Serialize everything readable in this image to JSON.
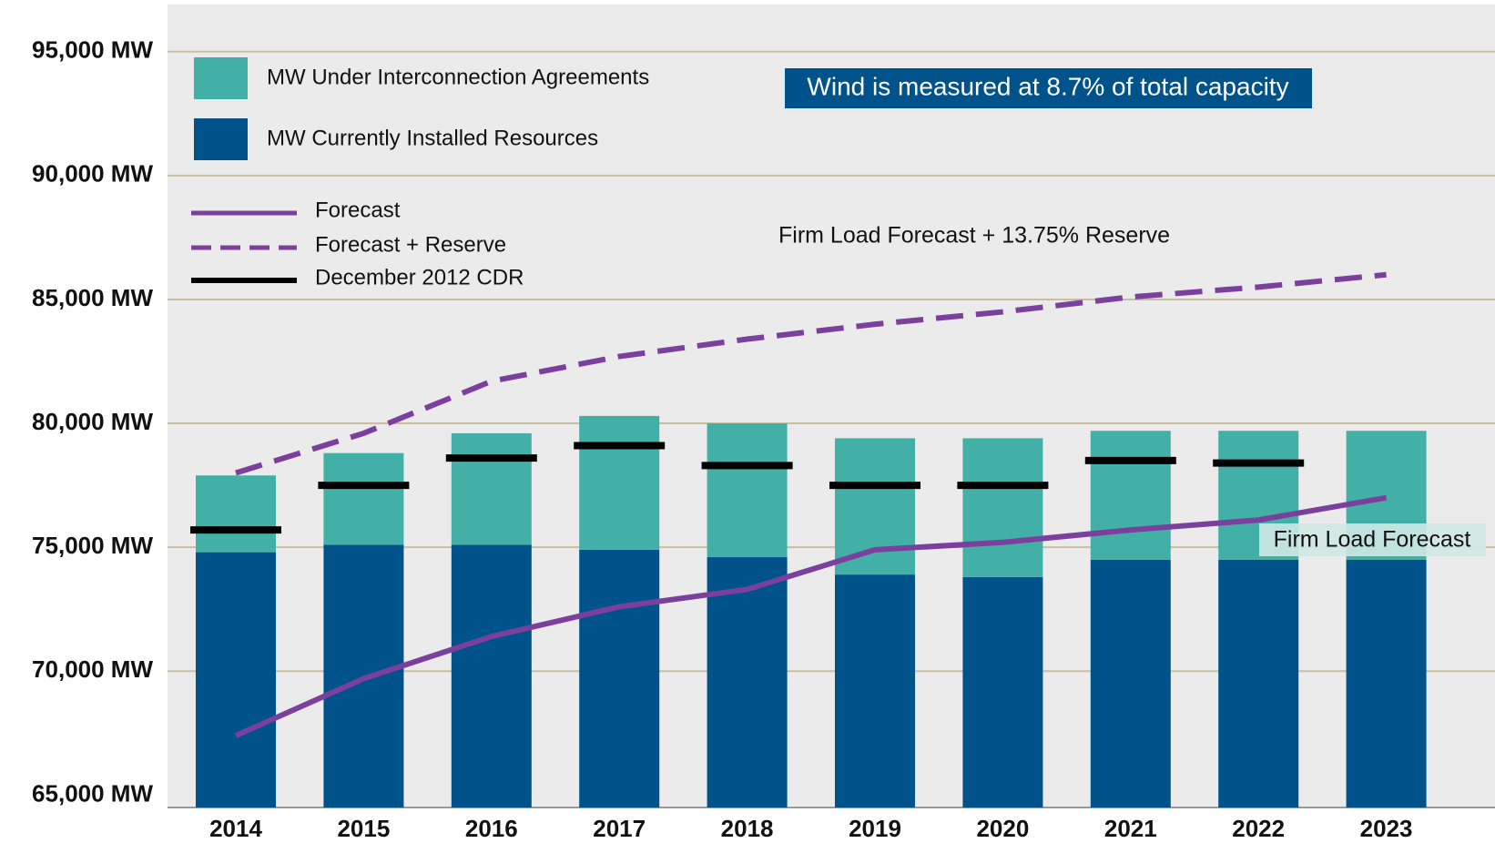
{
  "chart_data": {
    "type": "bar",
    "categories": [
      "2014",
      "2015",
      "2016",
      "2017",
      "2018",
      "2019",
      "2020",
      "2021",
      "2022",
      "2023"
    ],
    "series": [
      {
        "name": "MW Currently Installed Resources",
        "type": "bar",
        "color": "#00538a",
        "values": [
          74800,
          75100,
          75100,
          74900,
          74600,
          73900,
          73800,
          74500,
          74500,
          74500
        ]
      },
      {
        "name": "MW Under Interconnection Agreements",
        "type": "stacked",
        "color": "#43b0a8",
        "values": [
          3100,
          3700,
          4500,
          5400,
          5400,
          5500,
          5600,
          5200,
          5200,
          5200
        ]
      },
      {
        "name": "December 2012 CDR",
        "type": "marker",
        "color": "#000000",
        "values": [
          75700,
          77500,
          78600,
          79100,
          78300,
          77500,
          77500,
          78500,
          78400,
          null
        ]
      },
      {
        "name": "Forecast",
        "type": "line",
        "color": "#7b3f9e",
        "values": [
          67400,
          69700,
          71400,
          72600,
          73300,
          74900,
          75200,
          75700,
          76100,
          77000
        ]
      },
      {
        "name": "Forecast + Reserve",
        "type": "line",
        "dashed": true,
        "color": "#7b3f9e",
        "values": [
          78000,
          79600,
          81700,
          82700,
          83400,
          84000,
          84500,
          85100,
          85500,
          86000
        ]
      }
    ],
    "ylim": [
      64500,
      96900
    ],
    "yticks": [
      {
        "value": 65000,
        "label": "65,000 MW"
      },
      {
        "value": 70000,
        "label": "70,000 MW"
      },
      {
        "value": 75000,
        "label": "75,000 MW"
      },
      {
        "value": 80000,
        "label": "80,000 MW"
      },
      {
        "value": 85000,
        "label": "85,000 MW"
      },
      {
        "value": 90000,
        "label": "90,000 MW"
      },
      {
        "value": 95000,
        "label": "95,000 MW"
      }
    ],
    "grid": true,
    "annotations": [
      "Wind is measured at 8.7% of total capacity",
      "Firm Load Forecast + 13.75% Reserve",
      "Firm Load Forecast"
    ]
  }
}
